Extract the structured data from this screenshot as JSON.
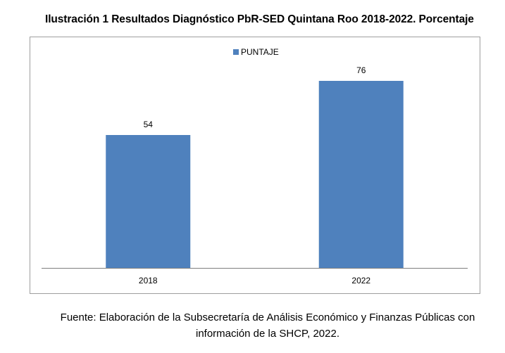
{
  "title": "Ilustración 1 Resultados Diagnóstico PbR-SED Quintana Roo 2018-2022. Porcentaje",
  "caption_line1": "Fuente: Elaboración de la Subsecretaría de Análisis Económico y Finanzas Públicas con",
  "caption_line2": "información de la SHCP, 2022.",
  "chart_data": {
    "type": "bar",
    "categories": [
      "2018",
      "2022"
    ],
    "series": [
      {
        "name": "PUNTAJE",
        "values": [
          54,
          76
        ],
        "color": "#4f81bd"
      }
    ],
    "ylim": [
      0,
      80
    ],
    "grid": false,
    "legend_position": "top-center",
    "data_labels": true,
    "xlabel": "",
    "ylabel": ""
  }
}
